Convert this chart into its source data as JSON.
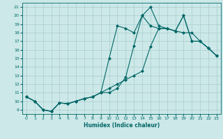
{
  "xlabel": "Humidex (Indice chaleur)",
  "background_color": "#cce8e8",
  "grid_color": "#aacccc",
  "line_color": "#006666",
  "xlim": [
    -0.5,
    23.5
  ],
  "ylim": [
    8.5,
    21.5
  ],
  "xticks": [
    0,
    1,
    2,
    3,
    4,
    5,
    6,
    7,
    8,
    9,
    10,
    11,
    12,
    13,
    14,
    15,
    16,
    17,
    18,
    19,
    20,
    21,
    22,
    23
  ],
  "yticks": [
    9,
    10,
    11,
    12,
    13,
    14,
    15,
    16,
    17,
    18,
    19,
    20,
    21
  ],
  "line1_x": [
    0,
    1,
    2,
    3,
    4,
    5,
    6,
    7,
    8,
    9,
    10,
    11,
    12,
    13,
    14,
    15,
    16,
    17,
    18,
    19,
    20,
    21,
    22,
    23
  ],
  "line1_y": [
    10.5,
    10.0,
    9.0,
    8.8,
    9.8,
    9.7,
    10.0,
    10.3,
    10.5,
    11.0,
    11.5,
    12.0,
    12.5,
    13.0,
    13.5,
    16.4,
    18.5,
    18.5,
    18.2,
    18.0,
    18.0,
    17.0,
    16.2,
    15.3
  ],
  "line2_x": [
    0,
    1,
    2,
    3,
    4,
    5,
    6,
    7,
    8,
    9,
    10,
    11,
    12,
    13,
    14,
    15,
    16,
    17,
    18,
    19,
    20,
    21,
    22,
    23
  ],
  "line2_y": [
    10.5,
    10.0,
    9.0,
    8.8,
    9.8,
    9.7,
    10.0,
    10.3,
    10.5,
    11.0,
    15.0,
    18.8,
    18.5,
    18.0,
    20.0,
    21.0,
    18.8,
    18.5,
    18.2,
    20.0,
    17.0,
    17.0,
    16.2,
    15.3
  ],
  "line3_x": [
    0,
    1,
    2,
    3,
    4,
    5,
    6,
    7,
    8,
    9,
    10,
    11,
    12,
    13,
    14,
    15,
    16,
    17,
    18,
    19,
    20,
    21,
    22,
    23
  ],
  "line3_y": [
    10.5,
    10.0,
    9.0,
    8.8,
    9.8,
    9.7,
    10.0,
    10.3,
    10.5,
    11.0,
    11.0,
    11.5,
    12.8,
    16.5,
    20.0,
    18.8,
    18.5,
    18.5,
    18.2,
    20.0,
    17.0,
    17.0,
    16.2,
    15.3
  ]
}
